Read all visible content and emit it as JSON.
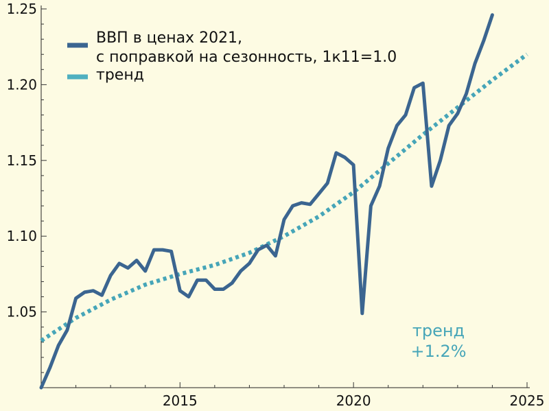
{
  "chart_data": {
    "type": "line",
    "title": "",
    "xlabel": "",
    "ylabel": "",
    "xlim": [
      2011,
      2025
    ],
    "ylim": [
      1.0,
      1.25
    ],
    "x_ticks": [
      2015,
      2020,
      2025
    ],
    "x_tick_labels": [
      "2015",
      "2020",
      "2025"
    ],
    "y_ticks": [
      1.05,
      1.1,
      1.15,
      1.2,
      1.25
    ],
    "y_tick_labels": [
      "1.05",
      "1.10",
      "1.15",
      "1.20",
      "1.25"
    ],
    "grid": false,
    "legend_position": "top-left",
    "legend": {
      "entries": [
        {
          "line1": "ВВП в ценах 2021,",
          "line2": "с поправкой на сезонность, 1к11=1.0"
        },
        {
          "line1": "тренд",
          "line2": ""
        }
      ]
    },
    "annotation": {
      "line1": "тренд",
      "line2": "+1.2%"
    },
    "colors": {
      "background": "#fdfbe3",
      "gdp": "#3b6590",
      "trend": "#46a5b8",
      "axis": "#222222",
      "legend_gdp": "#3b6590",
      "legend_trend": "#4fb0c0"
    },
    "series": [
      {
        "name": "ВВП в ценах 2021, с поправкой на сезонность, 1к11=1.0",
        "style": "solid",
        "x": [
          2011.0,
          2011.25,
          2011.5,
          2011.75,
          2012.0,
          2012.25,
          2012.5,
          2012.75,
          2013.0,
          2013.25,
          2013.5,
          2013.75,
          2014.0,
          2014.25,
          2014.5,
          2014.75,
          2015.0,
          2015.25,
          2015.5,
          2015.75,
          2016.0,
          2016.25,
          2016.5,
          2016.75,
          2017.0,
          2017.25,
          2017.5,
          2017.75,
          2018.0,
          2018.25,
          2018.5,
          2018.75,
          2019.0,
          2019.25,
          2019.5,
          2019.75,
          2020.0,
          2020.25,
          2020.5,
          2020.75,
          2021.0,
          2021.25,
          2021.5,
          2021.75,
          2022.0,
          2022.25,
          2022.5,
          2022.75,
          2023.0,
          2023.25,
          2023.5,
          2023.75,
          2024.0
        ],
        "values": [
          1.0,
          1.013,
          1.028,
          1.038,
          1.059,
          1.063,
          1.064,
          1.061,
          1.074,
          1.082,
          1.079,
          1.084,
          1.077,
          1.091,
          1.091,
          1.09,
          1.064,
          1.06,
          1.071,
          1.071,
          1.065,
          1.065,
          1.069,
          1.077,
          1.082,
          1.091,
          1.094,
          1.087,
          1.111,
          1.12,
          1.122,
          1.121,
          1.128,
          1.135,
          1.155,
          1.152,
          1.147,
          1.049,
          1.12,
          1.133,
          1.158,
          1.173,
          1.18,
          1.198,
          1.201,
          1.133,
          1.15,
          1.173,
          1.181,
          1.194,
          1.214,
          1.229,
          1.246
        ]
      },
      {
        "name": "тренд",
        "style": "dotted",
        "x": [
          2011.0,
          2012.0,
          2013.0,
          2014.0,
          2015.0,
          2016.0,
          2017.0,
          2018.0,
          2019.0,
          2020.0,
          2021.0,
          2022.0,
          2023.0,
          2024.0,
          2025.0
        ],
        "values": [
          1.031,
          1.046,
          1.058,
          1.068,
          1.075,
          1.081,
          1.089,
          1.1,
          1.113,
          1.129,
          1.148,
          1.167,
          1.185,
          1.203,
          1.22
        ]
      }
    ]
  }
}
